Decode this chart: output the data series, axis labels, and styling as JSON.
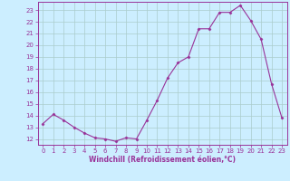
{
  "x": [
    0,
    1,
    2,
    3,
    4,
    5,
    6,
    7,
    8,
    9,
    10,
    11,
    12,
    13,
    14,
    15,
    16,
    17,
    18,
    19,
    20,
    21,
    22,
    23
  ],
  "y": [
    13.3,
    14.1,
    13.6,
    13.0,
    12.5,
    12.1,
    12.0,
    11.8,
    12.1,
    12.0,
    13.6,
    15.3,
    17.2,
    18.5,
    19.0,
    21.4,
    21.4,
    22.8,
    22.8,
    23.4,
    22.1,
    20.5,
    16.7,
    13.8
  ],
  "line_color": "#993399",
  "marker": "D",
  "marker_size": 1.5,
  "bg_color": "#cceeff",
  "grid_color": "#aacccc",
  "xlabel": "Windchill (Refroidissement éolien,°C)",
  "ylabel": "",
  "ylim": [
    11.5,
    23.7
  ],
  "xlim": [
    -0.5,
    23.5
  ],
  "yticks": [
    12,
    13,
    14,
    15,
    16,
    17,
    18,
    19,
    20,
    21,
    22,
    23
  ],
  "xticks": [
    0,
    1,
    2,
    3,
    4,
    5,
    6,
    7,
    8,
    9,
    10,
    11,
    12,
    13,
    14,
    15,
    16,
    17,
    18,
    19,
    20,
    21,
    22,
    23
  ],
  "tick_color": "#993399",
  "label_color": "#993399",
  "spine_color": "#993399",
  "xlabel_fontsize": 5.5,
  "tick_labelsize": 5
}
